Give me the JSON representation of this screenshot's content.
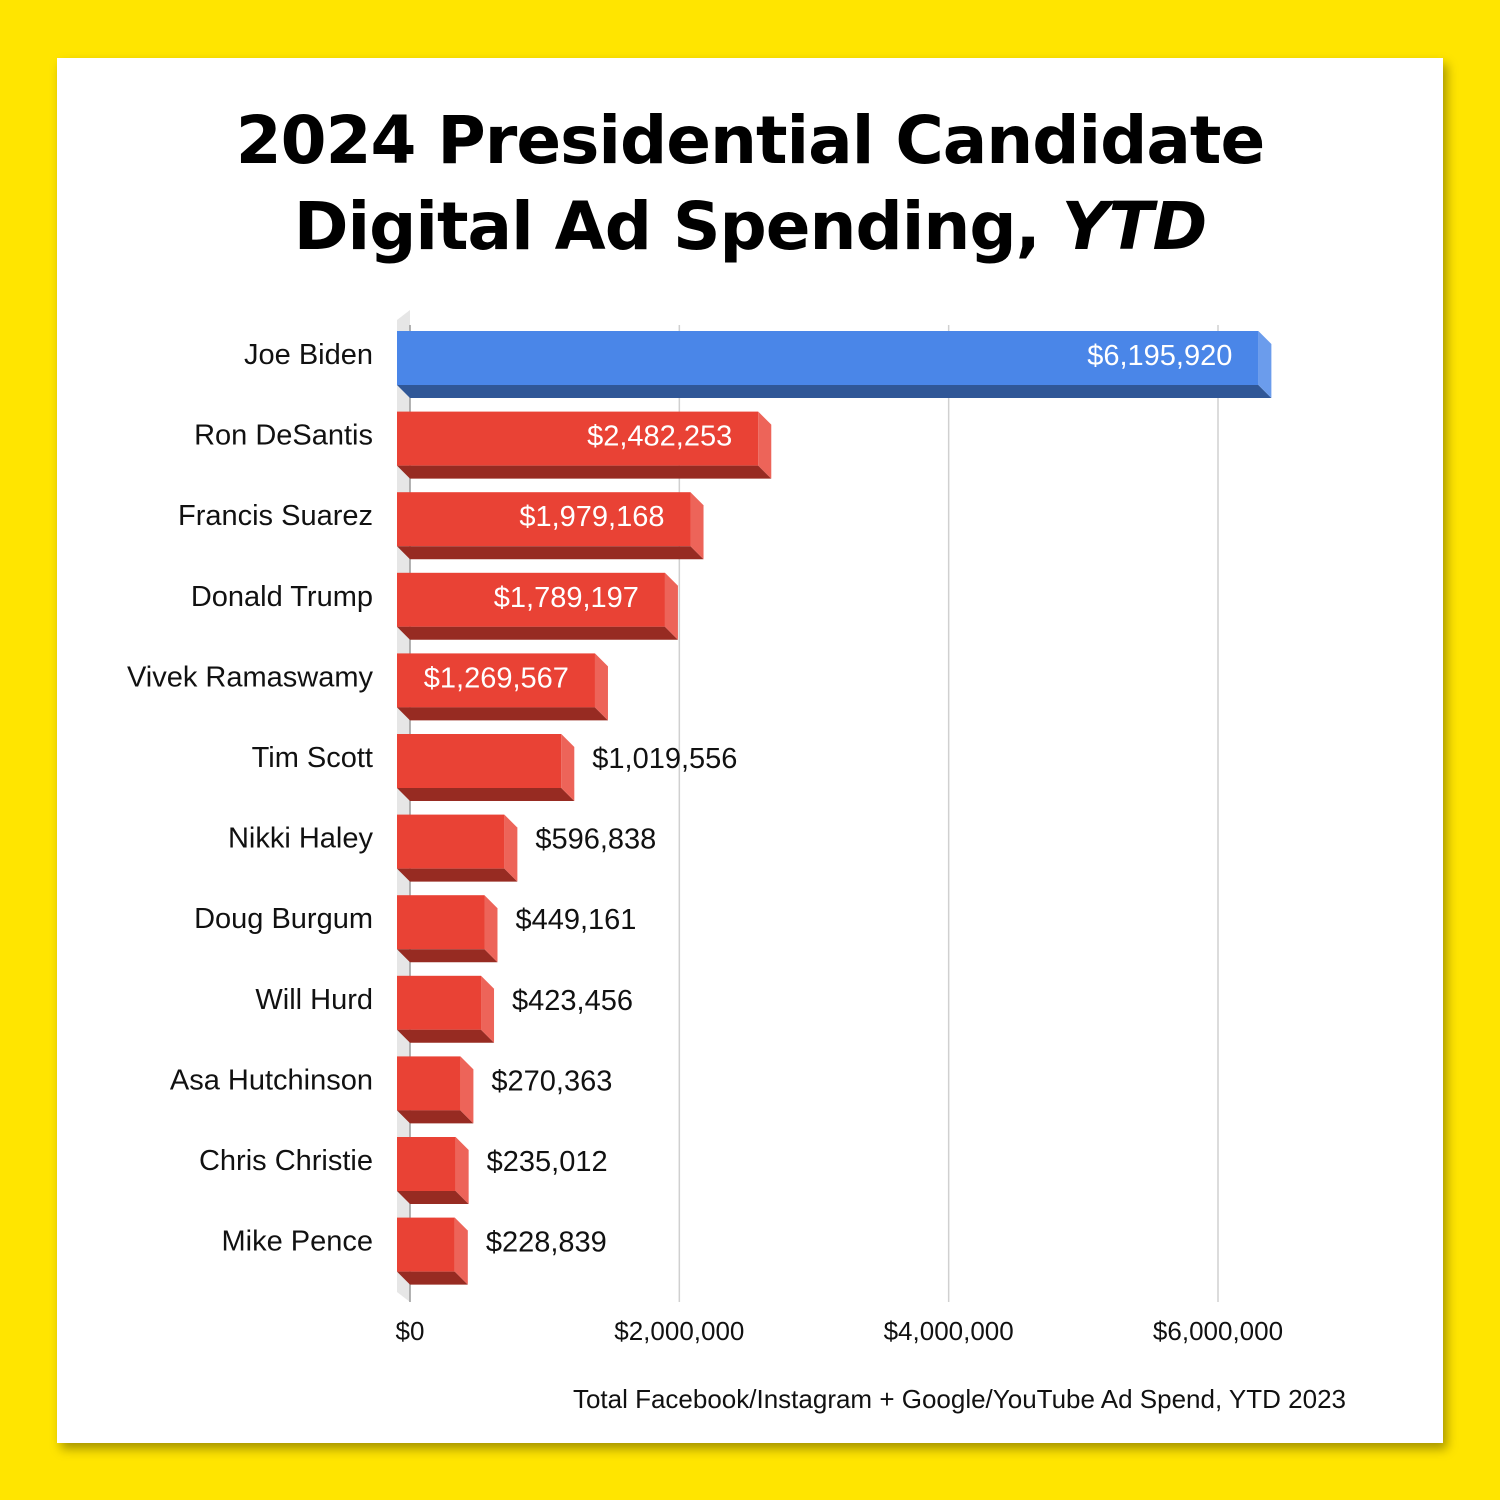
{
  "header": {
    "title_line1": "2024 Presidential Candidate",
    "title_line2_main": "Digital Ad Spending, ",
    "title_line2_italic": "YTD"
  },
  "footnote": "Total Facebook/Instagram + Google/YouTube Ad Spend, YTD 2023",
  "colors": {
    "background": "#FFE500",
    "democrat_bar": "#4A86E8",
    "republican_bar": "#E94235",
    "gridline": "#D0D0D0"
  },
  "chart_data": {
    "type": "bar",
    "orientation": "horizontal",
    "title": "2024 Presidential Candidate Digital Ad Spending, YTD",
    "xlabel": "",
    "ylabel": "",
    "xlim": [
      0,
      6000000
    ],
    "grid": true,
    "categories": [
      "Joe Biden",
      "Ron DeSantis",
      "Francis Suarez",
      "Donald Trump",
      "Vivek Ramaswamy",
      "Tim Scott",
      "Nikki Haley",
      "Doug Burgum",
      "Will Hurd",
      "Asa Hutchinson",
      "Chris Christie",
      "Mike Pence"
    ],
    "values": [
      6195920,
      2482253,
      1979168,
      1789197,
      1269567,
      1019556,
      596838,
      449161,
      423456,
      270363,
      235012,
      228839
    ],
    "value_labels": [
      "$6,195,920",
      "$2,482,253",
      "$1,979,168",
      "$1,789,197",
      "$1,269,567",
      "$1,019,556",
      "$596,838",
      "$449,161",
      "$423,456",
      "$270,363",
      "$235,012",
      "$228,839"
    ],
    "bar_colors": [
      "#4A86E8",
      "#E94235",
      "#E94235",
      "#E94235",
      "#E94235",
      "#E94235",
      "#E94235",
      "#E94235",
      "#E94235",
      "#E94235",
      "#E94235",
      "#E94235"
    ],
    "x_ticks": [
      0,
      2000000,
      4000000,
      6000000
    ],
    "x_tick_labels": [
      "$0",
      "$2,000,000",
      "$4,000,000",
      "$6,000,000"
    ]
  }
}
